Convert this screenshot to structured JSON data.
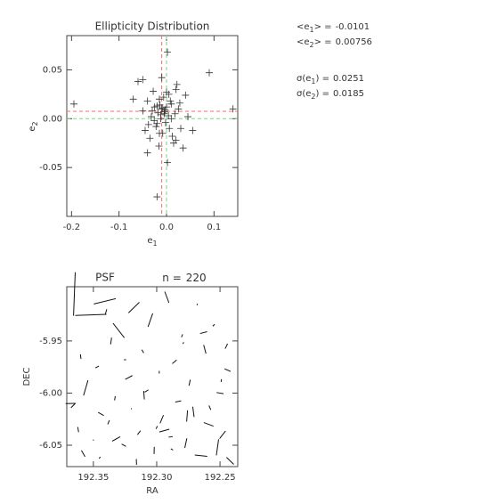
{
  "chart_data": [
    {
      "type": "scatter",
      "title": "Ellipticity Distribution",
      "xlabel": "e",
      "xlabel_sub": "1",
      "ylabel": "e",
      "ylabel_sub": "2",
      "xlim": [
        -0.21,
        0.15
      ],
      "ylim": [
        -0.1,
        0.085
      ],
      "xticks": [
        -0.2,
        -0.1,
        {
          "value": 0,
          "label": "0.0"
        },
        0.1
      ],
      "yticks": [
        0.05,
        {
          "value": 0,
          "label": "0.00"
        },
        -0.05
      ],
      "color": "#333333",
      "mean_color": "#ff6a6a",
      "zero_color": "#7ad27a",
      "stats": [
        {
          "prefix": "<e",
          "sub": "1",
          "suffix": "> =",
          "value": -0.0101,
          "kind": "mean_x"
        },
        {
          "prefix": "<e",
          "sub": "2",
          "suffix": "> =",
          "value": 0.00756,
          "kind": "mean_y"
        },
        {
          "prefix": "σ(e",
          "sub": "1",
          "suffix": ") =",
          "value": 0.0251
        },
        {
          "prefix": "σ(e",
          "sub": "2",
          "suffix": ") =",
          "value": 0.0185
        }
      ],
      "x": [
        -0.195,
        0.14,
        0.09,
        -0.02,
        0.002,
        -0.05,
        -0.04,
        -0.01,
        -0.005,
        0.0,
        -0.015,
        -0.02,
        0.01,
        -0.03,
        0.02,
        -0.008,
        -0.012,
        0.005,
        -0.025,
        -0.035,
        0.03,
        0.045,
        -0.06,
        0.015,
        -0.018,
        -0.002,
        0.008,
        -0.028,
        0.025,
        -0.045,
        0.035,
        -0.01,
        -0.022,
        0.004,
        -0.014,
        0.012,
        -0.006,
        -0.032,
        0.018,
        -0.04,
        0.055,
        -0.07,
        0.002,
        -0.016,
        -0.003,
        0.022,
        -0.026,
        -0.009,
        0.006,
        -0.05,
        0.028,
        -0.012,
        0.0,
        -0.02,
        0.01,
        -0.038,
        0.04,
        -0.004,
        -0.015,
        0.02
      ],
      "values": [
        0.015,
        0.01,
        0.047,
        -0.08,
        0.068,
        0.04,
        -0.035,
        0.01,
        0.005,
        0.012,
        0.02,
        -0.005,
        0.015,
        0.008,
        0.03,
        -0.015,
        0.0,
        0.025,
        0.012,
        -0.02,
        -0.01,
        0.002,
        0.038,
        -0.025,
        0.006,
        -0.004,
        0.018,
        0.028,
        0.01,
        -0.012,
        -0.03,
        0.042,
        -0.008,
        0.003,
        0.014,
        -0.018,
        0.022,
        0.002,
        0.005,
        0.018,
        -0.012,
        0.02,
        -0.045,
        -0.028,
        0.009,
        0.035,
        -0.002,
        0.011,
        -0.01,
        0.008,
        0.016,
        0.004,
        0.027,
        0.013,
        0.0,
        -0.006,
        0.024,
        0.007,
        -0.015,
        -0.022
      ]
    },
    {
      "type": "whisker",
      "title": "PSF",
      "count_label": "n =",
      "count": 220,
      "xlabel": "RA",
      "ylabel": "DEC",
      "xlim": [
        192.371,
        192.236
      ],
      "ylim": [
        -6.0705,
        -5.898
      ],
      "xticks": [
        192.35,
        {
          "value": 192.3,
          "label": "192.30"
        },
        192.25
      ],
      "yticks": [
        -5.95,
        {
          "value": -6,
          "label": "-6.00"
        },
        -6.05
      ],
      "color": "#111111",
      "length_scale": 250,
      "x": [
        192.365,
        192.352,
        192.341,
        192.33,
        192.318,
        192.305,
        192.292,
        192.28,
        192.268,
        192.255,
        192.245,
        192.36,
        192.347,
        192.336,
        192.322,
        192.311,
        192.298,
        192.286,
        192.274,
        192.262,
        192.25,
        192.368,
        192.356,
        192.344,
        192.333,
        192.32,
        192.308,
        192.296,
        192.283,
        192.271,
        192.259,
        192.248,
        192.362,
        192.35,
        192.338,
        192.326,
        192.314,
        192.302,
        192.289,
        192.277,
        192.265,
        192.252,
        192.242,
        192.358,
        192.345,
        192.332,
        192.316,
        192.3,
        192.288,
        192.276,
        192.263,
        192.249,
        192.366,
        192.34,
        192.325,
        192.31,
        192.294,
        192.279,
        192.258,
        192.244
      ],
      "values": [
        -5.905,
        -5.925,
        -5.912,
        -5.94,
        -5.918,
        -5.93,
        -5.908,
        -5.945,
        -5.915,
        -5.935,
        -5.955,
        -5.965,
        -5.975,
        -5.95,
        -5.985,
        -5.96,
        -5.98,
        -5.97,
        -5.99,
        -5.958,
        -6.0,
        -6.01,
        -5.995,
        -6.02,
        -6.005,
        -6.015,
        -5.998,
        -6.025,
        -6.008,
        -6.018,
        -6.03,
        -6.04,
        -6.035,
        -6.045,
        -6.028,
        -6.05,
        -6.038,
        -6.055,
        -6.042,
        -6.048,
        -6.06,
        -6.052,
        -6.065,
        -6.058,
        -6.062,
        -6.044,
        -6.066,
        -6.033,
        -6.054,
        -6.022,
        -5.942,
        -5.988,
        -6.012,
        -5.922,
        -5.968,
        -6.002,
        -6.036,
        -5.952,
        -6.014,
        -5.978
      ]
    }
  ]
}
